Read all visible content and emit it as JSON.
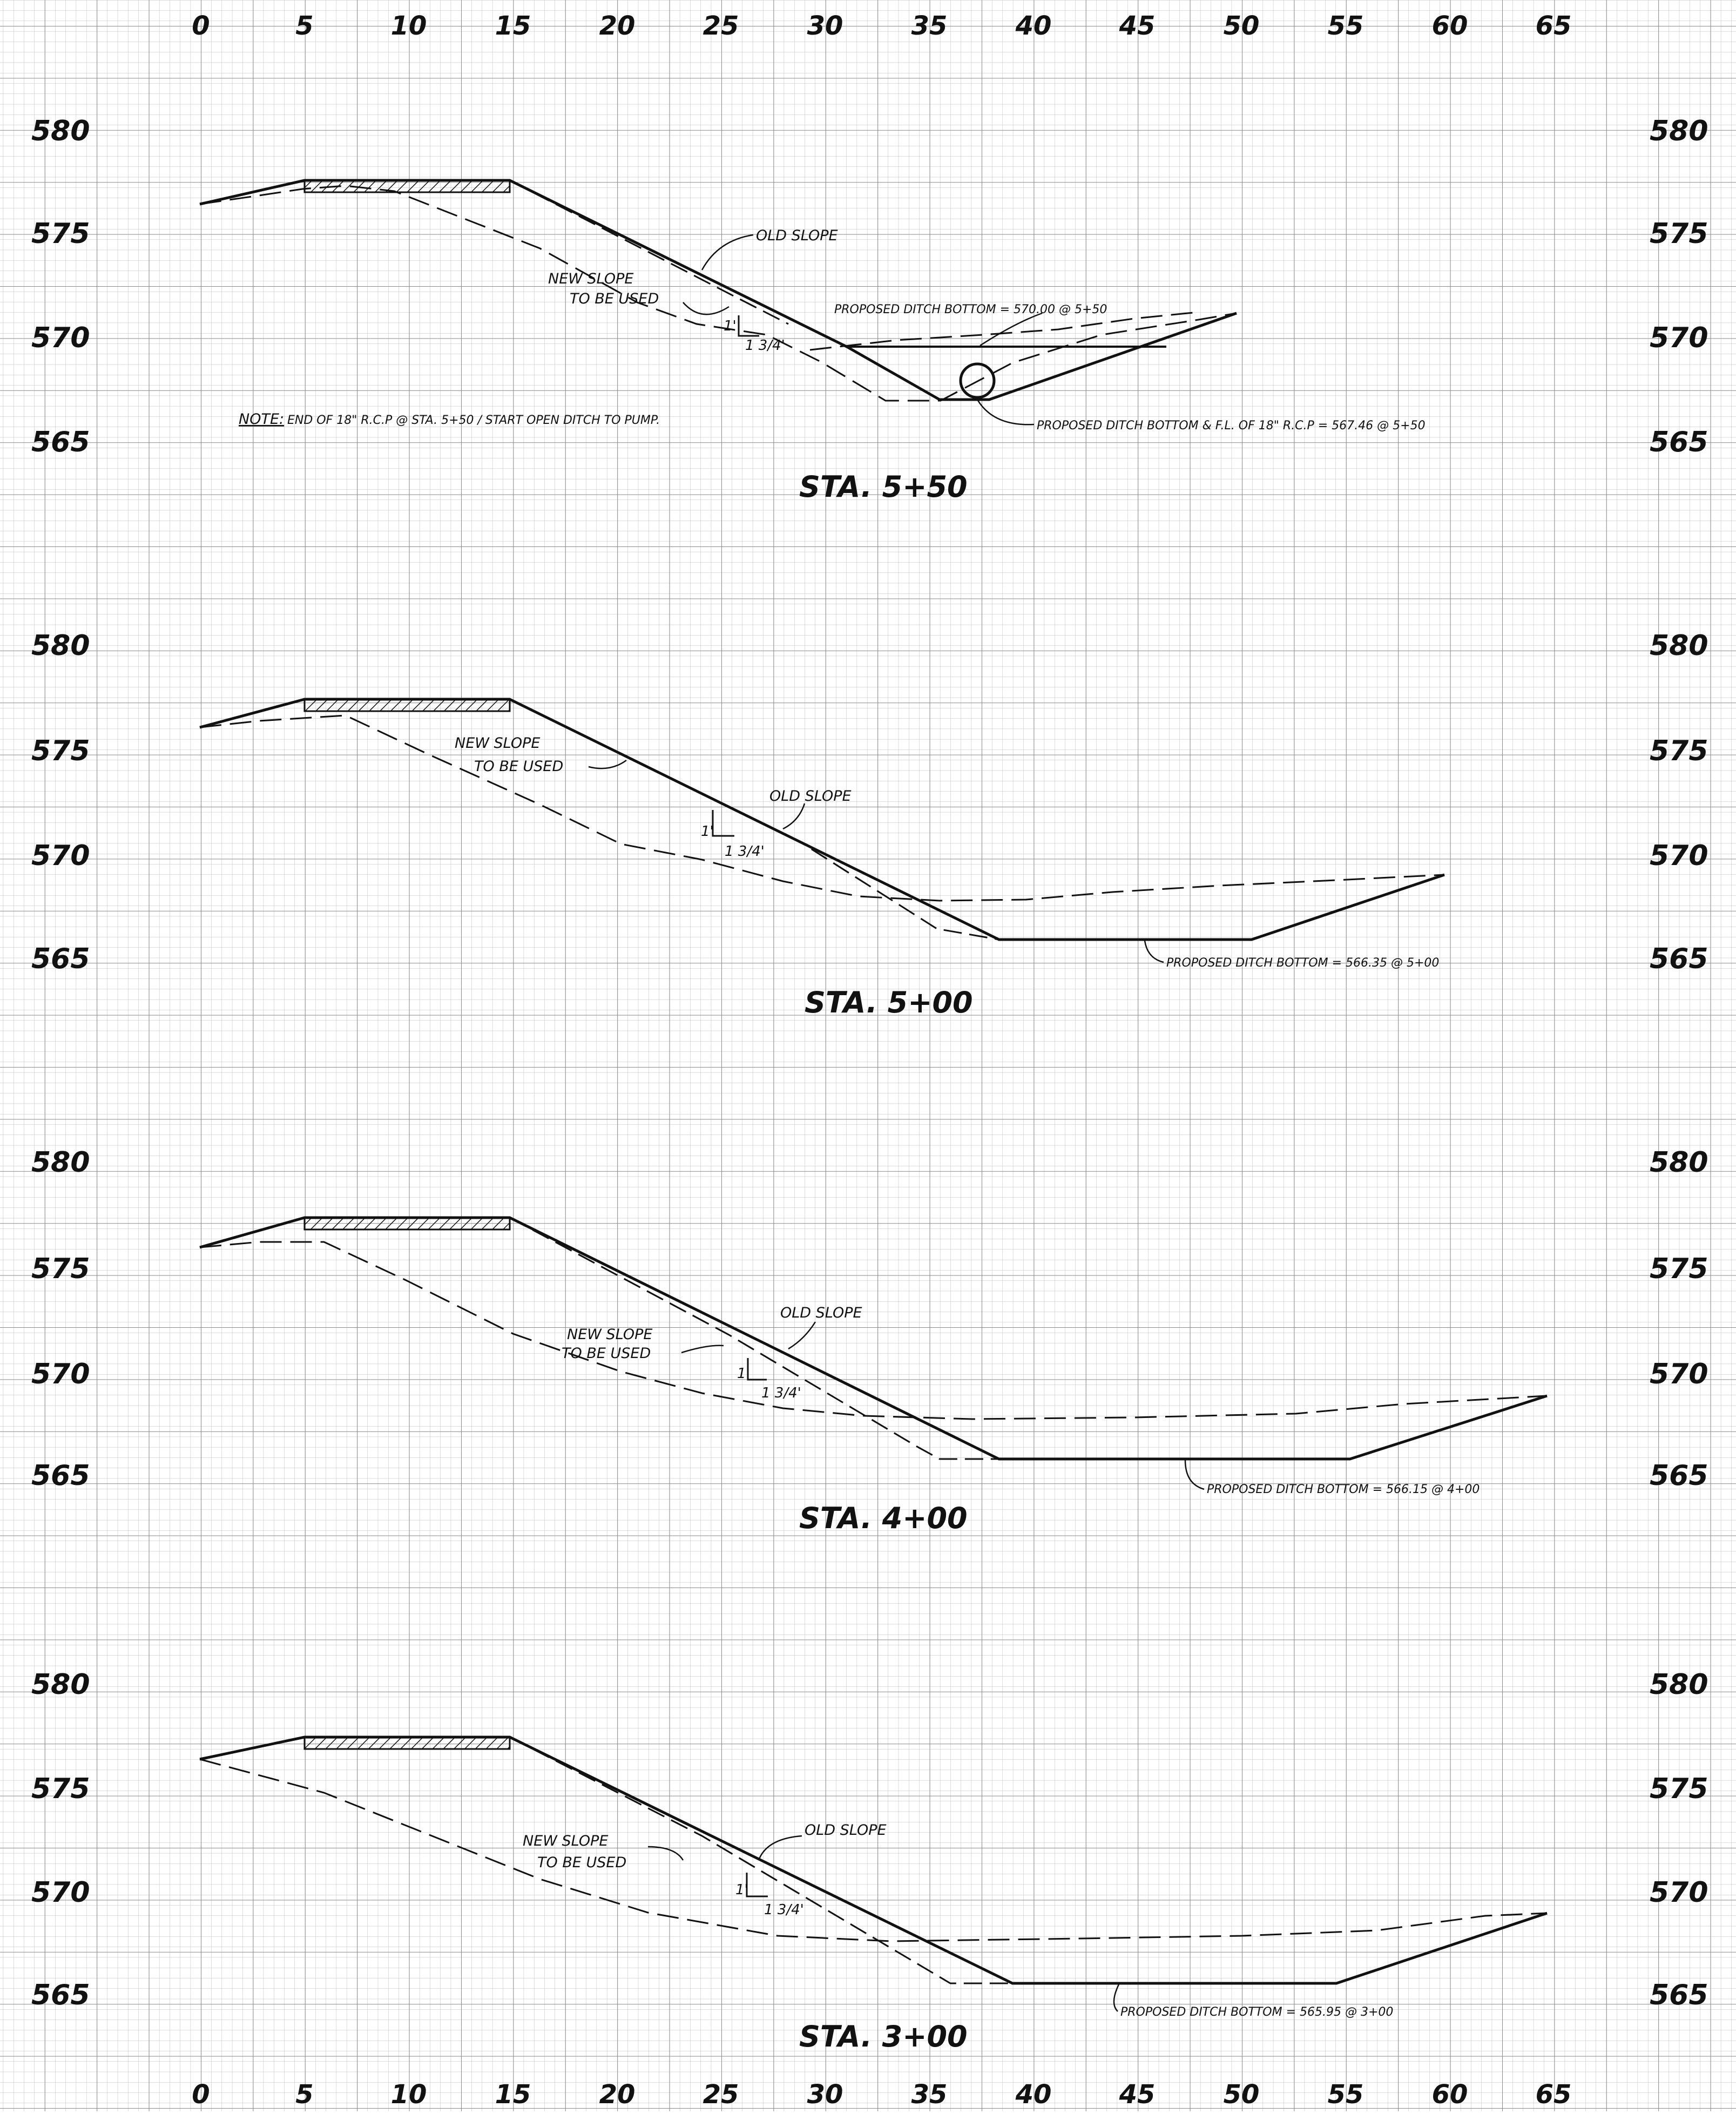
{
  "x_axis_ticks": [
    "0",
    "5",
    "10",
    "15",
    "20",
    "25",
    "30",
    "35",
    "40",
    "45",
    "50",
    "55",
    "60",
    "65"
  ],
  "elevation_ticks": [
    "580",
    "575",
    "570",
    "565"
  ],
  "sections": [
    {
      "station_title": "STA. 5+50",
      "new_slope_line1": "NEW SLOPE",
      "new_slope_line2": "TO BE USED",
      "old_slope": "OLD SLOPE",
      "rise": "1'",
      "run": "1 3/4'",
      "callouts": [
        "PROPOSED DITCH BOTTOM = 570.00 @ 5+50",
        "PROPOSED DITCH BOTTOM & F.L. OF 18\" R.C.P = 567.46 @ 5+50"
      ],
      "note_label": "NOTE:",
      "note_text": "END OF 18\" R.C.P @ STA. 5+50 / START OPEN DITCH TO PUMP."
    },
    {
      "station_title": "STA. 5+00",
      "new_slope_line1": "NEW SLOPE",
      "new_slope_line2": "TO BE USED",
      "old_slope": "OLD SLOPE",
      "rise": "1'",
      "run": "1 3/4'",
      "callouts": [
        "PROPOSED DITCH BOTTOM = 566.35 @ 5+00"
      ]
    },
    {
      "station_title": "STA. 4+00",
      "new_slope_line1": "NEW SLOPE",
      "new_slope_line2": "TO BE USED",
      "old_slope": "OLD SLOPE",
      "rise": "1'",
      "run": "1 3/4'",
      "callouts": [
        "PROPOSED DITCH BOTTOM = 566.15 @ 4+00"
      ]
    },
    {
      "station_title": "STA. 3+00",
      "new_slope_line1": "NEW SLOPE",
      "new_slope_line2": "TO BE USED",
      "old_slope": "OLD SLOPE",
      "rise": "1'",
      "run": "1 3/4'",
      "callouts": [
        "PROPOSED DITCH BOTTOM = 565.95 @ 3+00"
      ]
    }
  ]
}
